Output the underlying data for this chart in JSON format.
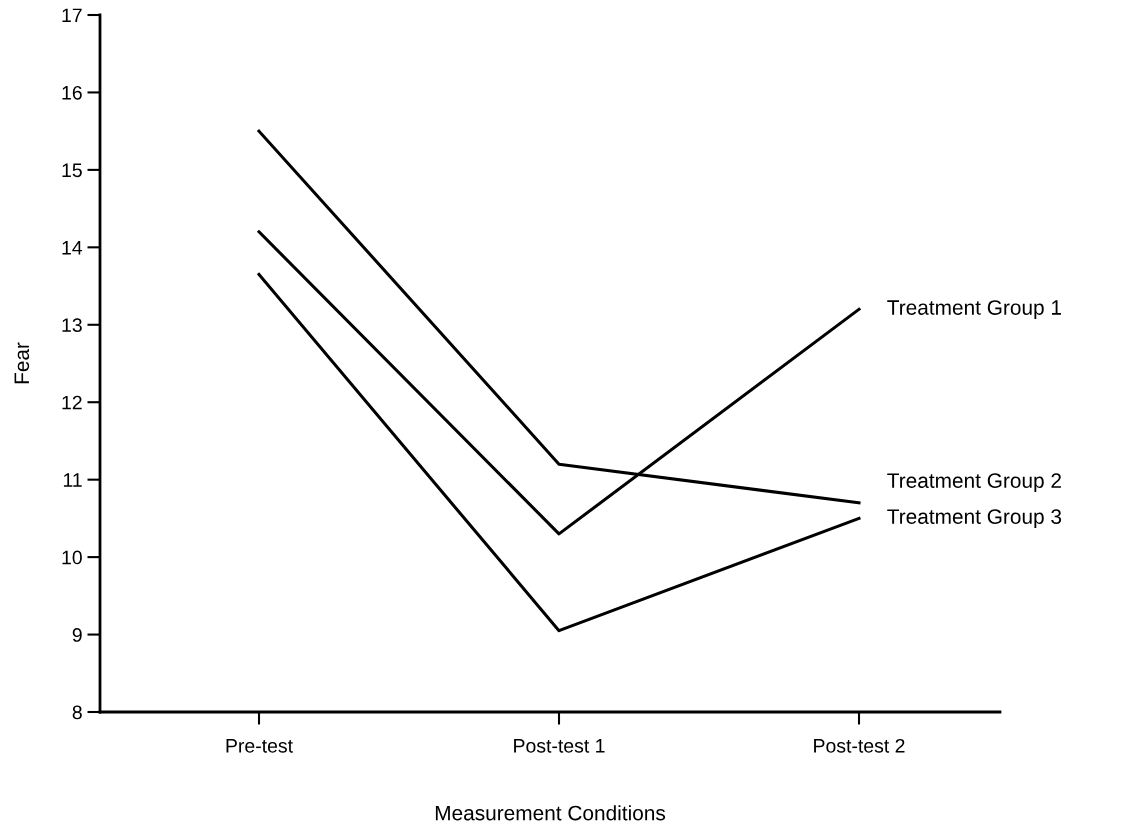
{
  "chart_data": {
    "type": "line",
    "xlabel": "Measurement Conditions",
    "ylabel": "Fear",
    "categories": [
      "Pre-test",
      "Post-test 1",
      "Post-test 2"
    ],
    "series": [
      {
        "name": "Treatment Group 1",
        "color": "#000000",
        "values": [
          14.2,
          10.3,
          13.2
        ]
      },
      {
        "name": "Treatment Group 2",
        "color": "#000000",
        "values": [
          15.5,
          11.2,
          10.7
        ]
      },
      {
        "name": "Treatment Group 3",
        "color": "#000000",
        "values": [
          13.65,
          9.05,
          10.5
        ]
      }
    ],
    "ylim": [
      8,
      17
    ],
    "yticks": [
      8,
      9,
      10,
      11,
      12,
      13,
      14,
      15,
      16,
      17
    ],
    "grid": false,
    "legend": false,
    "marker": "none",
    "line_style": "solid"
  }
}
